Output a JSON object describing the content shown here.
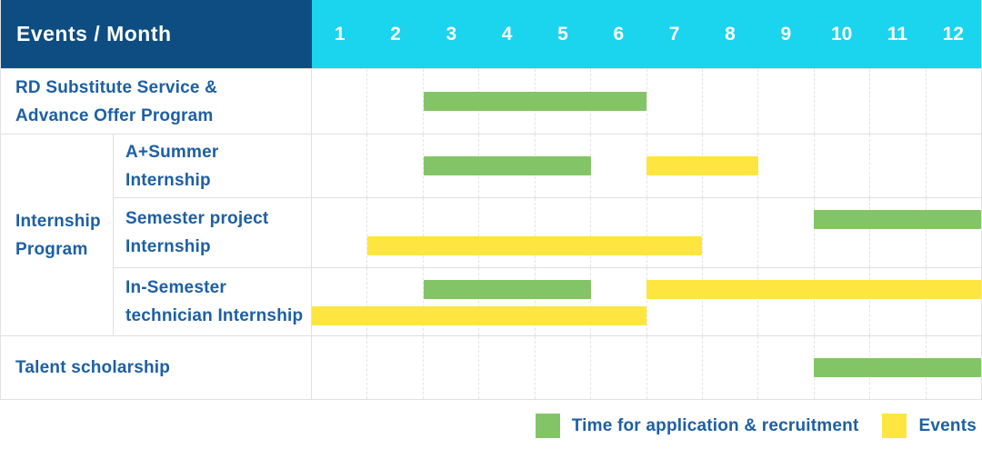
{
  "header": {
    "corner_label": "Events / Month",
    "months": [
      "1",
      "2",
      "3",
      "4",
      "5",
      "6",
      "7",
      "8",
      "9",
      "10",
      "11",
      "12"
    ]
  },
  "colors": {
    "header_navy": "#0e4d82",
    "header_cyan": "#1bd4ee",
    "application_green": "#83c566",
    "event_yellow": "#fee53f",
    "label_blue": "#1d5fa4",
    "grid_line": "#e0e0e0"
  },
  "legend": {
    "application_label": "Time for application & recruitment",
    "events_label": "Events"
  },
  "chart_data": {
    "type": "bar",
    "variant": "gantt",
    "x_axis": {
      "unit": "month",
      "ticks": [
        "1",
        "2",
        "3",
        "4",
        "5",
        "6",
        "7",
        "8",
        "9",
        "10",
        "11",
        "12"
      ],
      "range": [
        1,
        12
      ],
      "grid": "dashed-vertical"
    },
    "legend_position": "bottom-right",
    "legend": [
      {
        "key": "application",
        "name": "Time for application & recruitment",
        "color": "#83c566"
      },
      {
        "key": "event",
        "name": "Events",
        "color": "#fee53f"
      }
    ],
    "groups": [
      {
        "label": "Internship Program",
        "lines": [
          "Internship",
          "Program"
        ],
        "row_indexes": [
          1,
          2,
          3
        ]
      }
    ],
    "rows": [
      {
        "label": "RD Substitute Service & Advance Offer Program",
        "lines": [
          "RD Substitute Service &",
          "Advance Offer Program"
        ],
        "group": null,
        "bars": [
          {
            "type": "application",
            "start": 3,
            "end": 6,
            "band": "middle"
          }
        ]
      },
      {
        "label": "A+Summer Internship",
        "lines": [
          "A+Summer",
          "Internship"
        ],
        "group": "Internship Program",
        "bars": [
          {
            "type": "application",
            "start": 3,
            "end": 5,
            "band": "middle"
          },
          {
            "type": "event",
            "start": 7,
            "end": 8,
            "band": "middle"
          }
        ]
      },
      {
        "label": "Semester project Internship",
        "lines": [
          "Semester project",
          "Internship"
        ],
        "group": "Internship Program",
        "bars": [
          {
            "type": "application",
            "start": 10,
            "end": 12,
            "band": "upper"
          },
          {
            "type": "event",
            "start": 2,
            "end": 7,
            "band": "lower"
          }
        ]
      },
      {
        "label": "In-Semester technician Internship",
        "lines": [
          "In-Semester",
          "technician Internship"
        ],
        "group": "Internship Program",
        "bars": [
          {
            "type": "application",
            "start": 3,
            "end": 5,
            "band": "upper"
          },
          {
            "type": "event",
            "start": 7,
            "end": 12,
            "band": "upper"
          },
          {
            "type": "event",
            "start": 1,
            "end": 6,
            "band": "lower"
          }
        ]
      },
      {
        "label": "Talent scholarship",
        "lines": [
          "Talent scholarship"
        ],
        "group": null,
        "bars": [
          {
            "type": "application",
            "start": 10,
            "end": 12,
            "band": "middle"
          }
        ]
      }
    ]
  }
}
